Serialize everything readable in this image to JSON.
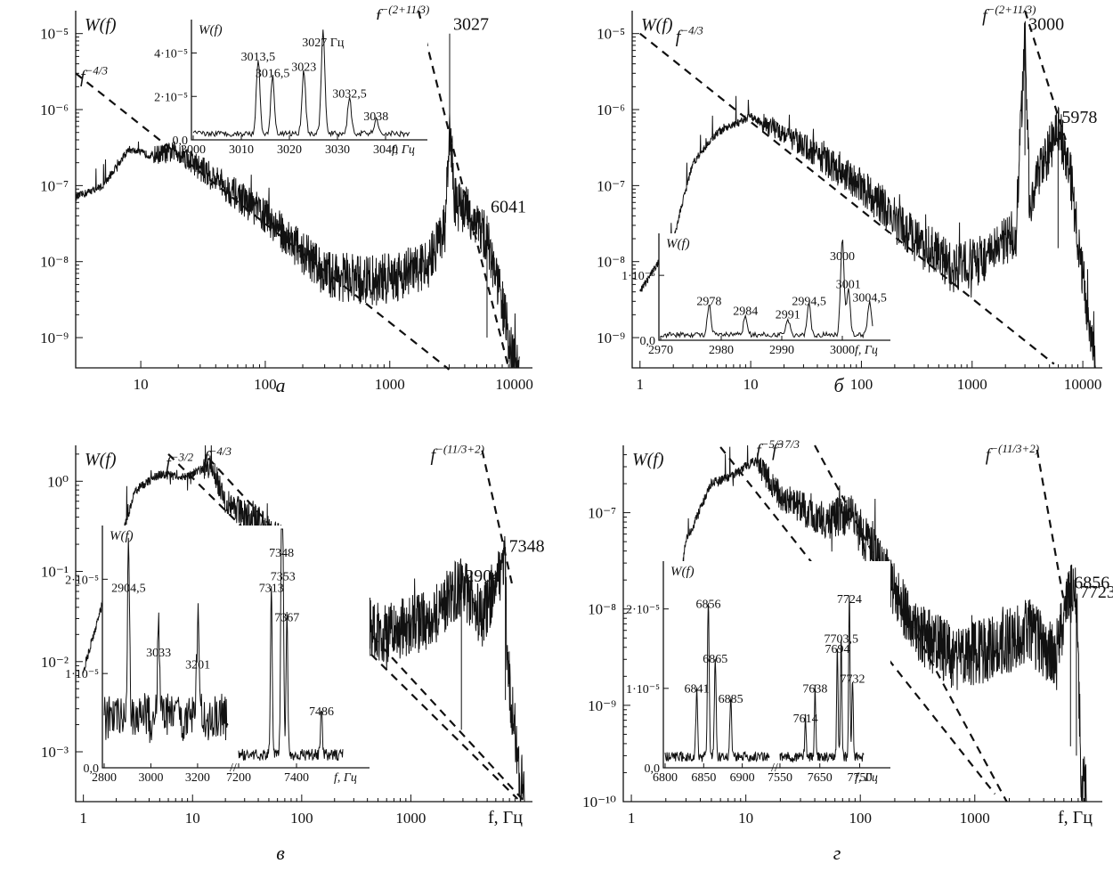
{
  "chart_data": [
    {
      "type": "line",
      "panel": "a",
      "ylabel": "W(f)",
      "xscale": "log",
      "yscale": "log",
      "xlim": [
        3,
        14000
      ],
      "ylim": [
        4e-10,
        2e-05
      ],
      "x_ticks": [
        10,
        100,
        1000,
        10000
      ],
      "x_tick_labels": [
        "10",
        "100",
        "1000",
        "10000"
      ],
      "y_ticks": [
        1e-09,
        1e-08,
        1e-07,
        1e-06,
        1e-05
      ],
      "y_tick_labels": [
        "10⁻⁹",
        "10⁻⁸",
        "10⁻⁷",
        "10⁻⁶",
        "10⁻⁵"
      ],
      "spectrum": [
        [
          3,
          7e-08
        ],
        [
          5,
          1e-07
        ],
        [
          8,
          3e-07
        ],
        [
          12,
          2.5e-07
        ],
        [
          20,
          2.8e-07
        ],
        [
          40,
          1.2e-07
        ],
        [
          100,
          4e-08
        ],
        [
          300,
          7e-09
        ],
        [
          600,
          5.5e-09
        ],
        [
          1000,
          6e-09
        ],
        [
          2000,
          9e-09
        ],
        [
          2800,
          3e-08
        ],
        [
          3027,
          6e-07
        ],
        [
          3300,
          6e-08
        ],
        [
          4500,
          4e-08
        ],
        [
          6000,
          2e-08
        ],
        [
          8000,
          3e-09
        ],
        [
          9500,
          6e-10
        ],
        [
          11000,
          4e-10
        ]
      ],
      "peaks": [
        {
          "label": "3027",
          "x": 3027,
          "y": 1e-05
        },
        {
          "label": "6041",
          "x": 6041,
          "y": 4e-08
        }
      ],
      "fit_lines": [
        {
          "label": "f^{-4/3}",
          "x": [
            3,
            3000
          ],
          "y": [
            3e-06,
            3.8e-10
          ]
        },
        {
          "label": "f^{-(2+11/3)}",
          "x": [
            1700,
            9000
          ],
          "y": [
            2e-05,
            4e-10
          ]
        }
      ],
      "inset": {
        "ylabel": "W(f)",
        "xlabel": "f, Гц",
        "xlim": [
          3000,
          3045
        ],
        "ylim": [
          0,
          5.5e-05
        ],
        "x_tick_labels": [
          "3000",
          "3010",
          "3020",
          "3030",
          "3040"
        ],
        "y_tick_labels": [
          "0,0",
          "2·10⁻⁵",
          "4·10⁻⁵"
        ],
        "peaks": [
          {
            "label": "3013,5",
            "x": 3013.5,
            "y": 3.6e-05
          },
          {
            "label": "3016,5",
            "x": 3016.5,
            "y": 2.8e-05
          },
          {
            "label": "3023",
            "x": 3023,
            "y": 3.1e-05
          },
          {
            "label": "3027 Гц",
            "x": 3027,
            "y": 5e-05
          },
          {
            "label": "3032,5",
            "x": 3032.5,
            "y": 1.8e-05
          },
          {
            "label": "3038",
            "x": 3038,
            "y": 7e-06
          }
        ]
      }
    },
    {
      "type": "line",
      "panel": "б",
      "ylabel": "W(f)",
      "xscale": "log",
      "yscale": "log",
      "xlim": [
        0.85,
        15000
      ],
      "ylim": [
        4e-10,
        2e-05
      ],
      "x_ticks": [
        1,
        10,
        100,
        1000,
        10000
      ],
      "x_tick_labels": [
        "1",
        "10",
        "100",
        "1000",
        "10000"
      ],
      "y_ticks": [
        1e-09,
        1e-08,
        1e-07,
        1e-06,
        1e-05
      ],
      "y_tick_labels": [
        "10⁻⁹",
        "10⁻⁸",
        "10⁻⁷",
        "10⁻⁶",
        "10⁻⁵"
      ],
      "spectrum": [
        [
          1,
          4e-09
        ],
        [
          2,
          2e-08
        ],
        [
          3,
          2e-07
        ],
        [
          5,
          5e-07
        ],
        [
          10,
          8e-07
        ],
        [
          20,
          5e-07
        ],
        [
          50,
          2e-07
        ],
        [
          100,
          1e-07
        ],
        [
          300,
          2e-08
        ],
        [
          700,
          8e-09
        ],
        [
          1500,
          1.2e-08
        ],
        [
          2500,
          2.5e-08
        ],
        [
          3000,
          1e-05
        ],
        [
          3300,
          6e-08
        ],
        [
          4500,
          2e-07
        ],
        [
          5978,
          6e-07
        ],
        [
          7500,
          2e-07
        ],
        [
          10000,
          6e-09
        ],
        [
          13000,
          5e-10
        ]
      ],
      "peaks": [
        {
          "label": "3000",
          "x": 3000,
          "y": 1e-05
        },
        {
          "label": "5978",
          "x": 5978,
          "y": 6e-07
        }
      ],
      "fit_lines": [
        {
          "label": "f^{-4/3}",
          "x": [
            1,
            5500
          ],
          "y": [
            1e-05,
            4.5e-10
          ]
        },
        {
          "label": "f^{-(2+11/3)}",
          "x": [
            3000,
            7000
          ],
          "y": [
            2e-05,
            4e-07
          ]
        }
      ],
      "inset": {
        "ylabel": "W(f)",
        "xlabel": "f, Гц",
        "xlim": [
          2970,
          3005
        ],
        "ylim": [
          0,
          1.5e-05
        ],
        "x_tick_labels": [
          "2970",
          "2980",
          "2990",
          "3000"
        ],
        "y_tick_labels": [
          "0,0",
          "1·10⁻⁵"
        ],
        "peaks": [
          {
            "label": "2978",
            "x": 2978,
            "y": 4.5e-06
          },
          {
            "label": "2984",
            "x": 2984,
            "y": 3e-06
          },
          {
            "label": "2991",
            "x": 2991,
            "y": 2.5e-06
          },
          {
            "label": "2994,5",
            "x": 2994.5,
            "y": 4.5e-06
          },
          {
            "label": "3000",
            "x": 3000,
            "y": 1.45e-05
          },
          {
            "label": "3001",
            "x": 3001,
            "y": 7e-06
          },
          {
            "label": "3004,5",
            "x": 3004.5,
            "y": 5e-06
          }
        ]
      }
    },
    {
      "type": "line",
      "panel": "в",
      "ylabel": "W(f)",
      "xlabel": "f, Гц",
      "xscale": "log",
      "yscale": "log",
      "xlim": [
        0.85,
        13000
      ],
      "ylim": [
        0.00028,
        2.5
      ],
      "x_ticks": [
        1,
        10,
        100,
        1000
      ],
      "x_tick_labels": [
        "1",
        "10",
        "100",
        "1000"
      ],
      "y_ticks": [
        0.001,
        0.01,
        0.1,
        1
      ],
      "y_tick_labels": [
        "10⁻³",
        "10⁻²",
        "10⁻¹",
        "10⁰"
      ],
      "spectrum": [
        [
          1,
          0.008
        ],
        [
          2,
          0.15
        ],
        [
          3,
          0.8
        ],
        [
          5,
          1.2
        ],
        [
          8,
          1.1
        ],
        [
          15,
          1.5
        ],
        [
          20,
          0.6
        ],
        [
          40,
          0.35
        ],
        [
          100,
          0.12
        ],
        [
          300,
          0.03
        ],
        [
          600,
          0.02
        ],
        [
          1500,
          0.03
        ],
        [
          2904,
          0.07
        ],
        [
          4500,
          0.03
        ],
        [
          7348,
          0.15
        ],
        [
          7600,
          0.01
        ],
        [
          10000,
          0.0005
        ],
        [
          11500,
          0.0003
        ]
      ],
      "peaks": [
        {
          "label": "2904",
          "x": 2904,
          "y": 0.07
        },
        {
          "label": "7348",
          "x": 7348,
          "y": 0.15
        }
      ],
      "fit_lines": [
        {
          "label": "f^{-4/3}",
          "x": [
            6,
            9500
          ],
          "y": [
            2,
            0.0003
          ]
        },
        {
          "label": "f^{-3/2}",
          "x": [
            14,
            11000
          ],
          "y": [
            1.8,
            0.00028
          ]
        },
        {
          "label": "f^{-(11/3+2)}",
          "x": [
            4500,
            8500
          ],
          "y": [
            2.2,
            0.07
          ]
        }
      ],
      "inset": {
        "ylabel": "W(f)",
        "xlabel": "f, Гц",
        "xlim_left": [
          2800,
          3330
        ],
        "xlim_right": [
          7200,
          7560
        ],
        "ylim": [
          0,
          2e-05
        ],
        "x_tick_labels": [
          "2800",
          "3000",
          "3200",
          "7200",
          "7400"
        ],
        "y_tick_labels": [
          "0,0",
          "1·10⁻⁵",
          "2·10⁻⁵"
        ],
        "peaks": [
          {
            "label": "2904,5",
            "x": 2904.5,
            "y": 1.45e-05
          },
          {
            "label": "3033",
            "x": 3033,
            "y": 9e-06
          },
          {
            "label": "3201",
            "x": 3201,
            "y": 8e-06
          },
          {
            "label": "7313",
            "x": 7313,
            "y": 1.45e-05
          },
          {
            "label": "7348",
            "x": 7348,
            "y": 1.75e-05
          },
          {
            "label": "7353",
            "x": 7353,
            "y": 1.55e-05
          },
          {
            "label": "7367",
            "x": 7367,
            "y": 1.2e-05
          },
          {
            "label": "7486",
            "x": 7486,
            "y": 4e-06
          }
        ]
      }
    },
    {
      "type": "line",
      "panel": "г",
      "ylabel": "W(f)",
      "xlabel": "f, Гц",
      "xscale": "log",
      "yscale": "log",
      "xlim": [
        0.85,
        13000
      ],
      "ylim": [
        1e-10,
        5e-07
      ],
      "x_ticks": [
        1,
        10,
        100,
        1000
      ],
      "x_tick_labels": [
        "1",
        "10",
        "100",
        "1000"
      ],
      "y_ticks": [
        1e-10,
        1e-09,
        1e-08,
        1e-07
      ],
      "y_tick_labels": [
        "10⁻¹⁰",
        "10⁻⁹",
        "10⁻⁸",
        "10⁻⁷"
      ],
      "spectrum": [
        [
          2,
          2e-09
        ],
        [
          3,
          5e-08
        ],
        [
          5,
          2e-07
        ],
        [
          8,
          2.5e-07
        ],
        [
          12,
          3.5e-07
        ],
        [
          20,
          1.5e-07
        ],
        [
          50,
          8e-08
        ],
        [
          80,
          1e-07
        ],
        [
          150,
          3e-08
        ],
        [
          300,
          6e-09
        ],
        [
          700,
          3e-09
        ],
        [
          1500,
          4e-09
        ],
        [
          3000,
          6e-09
        ],
        [
          5000,
          3e-09
        ],
        [
          6856,
          1.5e-08
        ],
        [
          7723,
          1.2e-08
        ],
        [
          8500,
          2e-10
        ],
        [
          9500,
          1e-10
        ]
      ],
      "peaks": [
        {
          "label": "6856",
          "x": 6856,
          "y": 1.5e-08
        },
        {
          "label": "7723",
          "x": 7723,
          "y": 1.2e-08
        }
      ],
      "fit_lines": [
        {
          "label": "f^{-5/3}",
          "x": [
            6,
            1500
          ],
          "y": [
            4.8e-07,
            1.2e-10
          ]
        },
        {
          "label": "f^{-7/3}",
          "x": [
            40,
            1900
          ],
          "y": [
            5e-07,
            1e-10
          ]
        },
        {
          "label": "f^{-(11/3+2)}",
          "x": [
            3500,
            6000
          ],
          "y": [
            4.5e-07,
            1.2e-08
          ]
        }
      ],
      "inset": {
        "ylabel": "W(f)",
        "xlabel": "f, Гц",
        "xlim_left": [
          6800,
          6935
        ],
        "xlim_right": [
          7550,
          7760
        ],
        "ylim": [
          0,
          2e-05
        ],
        "x_tick_labels": [
          "6800",
          "6850",
          "6900",
          "7550",
          "7650",
          "7750"
        ],
        "y_tick_labels": [
          "0,0",
          "1·10⁻⁵",
          "2·10⁻⁵"
        ],
        "peaks": [
          {
            "label": "6841",
            "x": 6841,
            "y": 7e-06
          },
          {
            "label": "6856",
            "x": 6856,
            "y": 1.55e-05
          },
          {
            "label": "6865",
            "x": 6865,
            "y": 1e-05
          },
          {
            "label": "6885",
            "x": 6885,
            "y": 6e-06
          },
          {
            "label": "7614",
            "x": 7614,
            "y": 4e-06
          },
          {
            "label": "7638",
            "x": 7638,
            "y": 7e-06
          },
          {
            "label": "7694",
            "x": 7694,
            "y": 1.1e-05
          },
          {
            "label": "7703,5",
            "x": 7703.5,
            "y": 1.2e-05
          },
          {
            "label": "7724",
            "x": 7724,
            "y": 1.6e-05
          },
          {
            "label": "7732",
            "x": 7732,
            "y": 8e-06
          }
        ]
      }
    }
  ],
  "fit_label_text": {
    "f43": "f",
    "e43": "−4/3",
    "e211": "−(2+11/3)",
    "e32": "−3/2",
    "e1132": "−(11/3+2)",
    "e53": "−5/3",
    "e73": "−7/3"
  },
  "captions": {
    "a": "а",
    "b": "б",
    "c": "в",
    "d": "г"
  },
  "axis_label": {
    "W": "W(f)",
    "fHz": "f,  Гц",
    "f": "f"
  }
}
